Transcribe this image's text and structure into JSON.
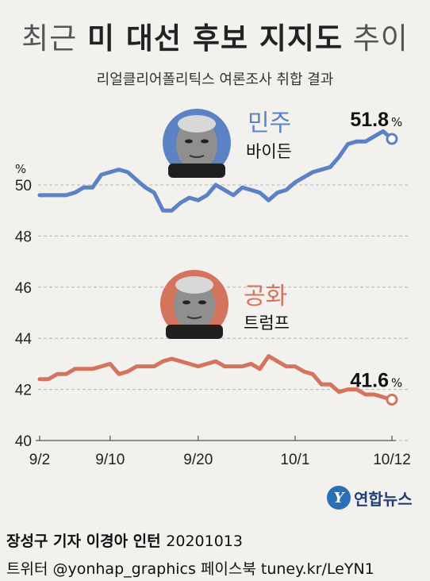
{
  "header": {
    "title_prefix": "최근",
    "title_bold": "미 대선 후보 지지도",
    "title_suffix": "추이",
    "subtitle": "리얼클리어폴리틱스 여론조사 취합 결과"
  },
  "chart_data": {
    "type": "line",
    "ylabel": "%",
    "ylim": [
      40,
      52
    ],
    "yticks": [
      40,
      42,
      44,
      46,
      48,
      50
    ],
    "x_range": [
      0,
      40
    ],
    "xticks": [
      {
        "x": 0,
        "label": "9/2"
      },
      {
        "x": 8,
        "label": "9/10"
      },
      {
        "x": 18,
        "label": "9/20"
      },
      {
        "x": 29,
        "label": "10/1"
      },
      {
        "x": 40,
        "label": "10/12"
      }
    ],
    "grid": true,
    "series": [
      {
        "name": "민주 바이든",
        "party": "민주",
        "candidate": "바이든",
        "color": "#5b82c4",
        "final_label": "51.8",
        "values": [
          49.6,
          49.6,
          49.6,
          49.6,
          49.7,
          49.9,
          49.9,
          50.4,
          50.5,
          50.6,
          50.5,
          50.2,
          49.9,
          49.7,
          49.0,
          49.0,
          49.3,
          49.5,
          49.4,
          49.6,
          50.0,
          49.8,
          49.6,
          49.9,
          49.8,
          49.7,
          49.4,
          49.7,
          49.8,
          50.1,
          50.3,
          50.5,
          50.6,
          50.7,
          51.1,
          51.6,
          51.7,
          51.7,
          51.9,
          52.1,
          51.8
        ]
      },
      {
        "name": "공화 트럼프",
        "party": "공화",
        "candidate": "트럼프",
        "color": "#d4745d",
        "final_label": "41.6",
        "values": [
          42.4,
          42.4,
          42.6,
          42.6,
          42.8,
          42.8,
          42.8,
          42.9,
          43.0,
          42.6,
          42.7,
          42.9,
          42.9,
          42.9,
          43.1,
          43.2,
          43.1,
          43.0,
          42.9,
          43.0,
          43.1,
          42.9,
          42.9,
          42.9,
          43.0,
          42.8,
          43.3,
          43.1,
          42.9,
          42.9,
          42.7,
          42.6,
          42.2,
          42.2,
          41.9,
          42.0,
          42.0,
          41.8,
          41.8,
          41.7,
          41.6
        ]
      }
    ]
  },
  "footer": {
    "credit_line1": "장성구 기자  이경아 인턴",
    "date": "20201013",
    "credit_line2": "트위터 @yonhap_graphics  페이스북 tuney.kr/LeYN1",
    "logo_mark": "Y",
    "logo_text": "연합뉴스"
  }
}
